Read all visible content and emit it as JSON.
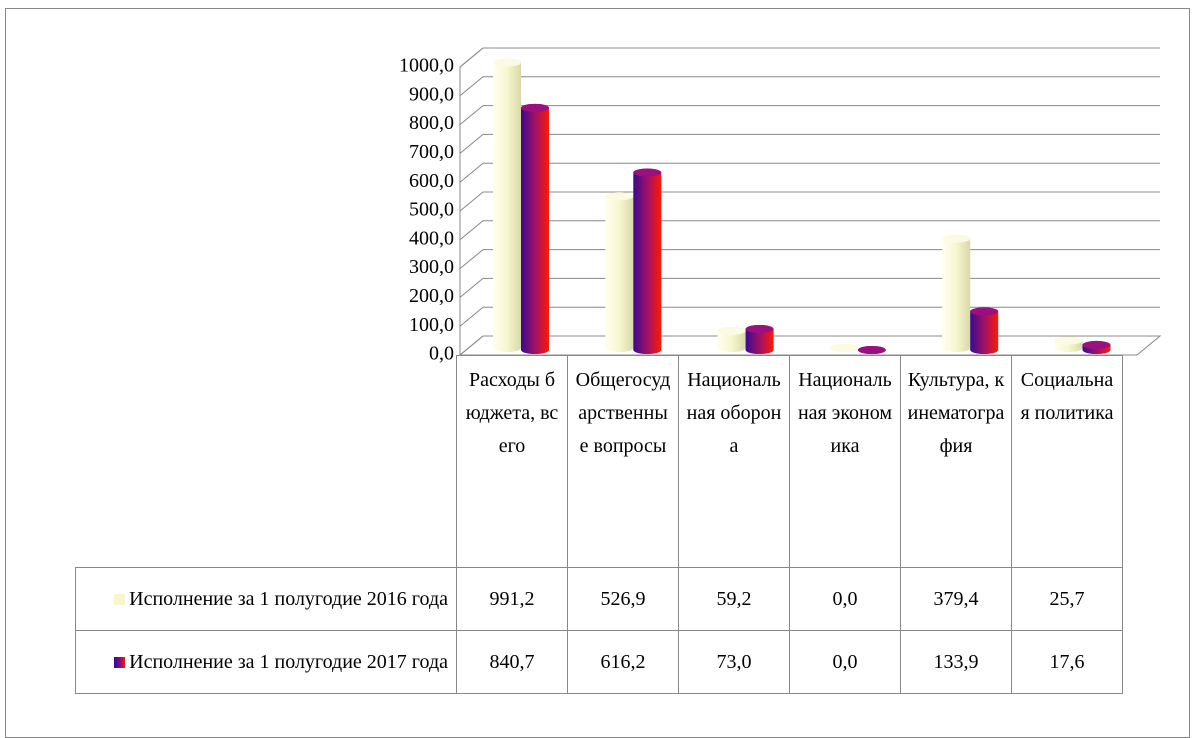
{
  "chart_data": {
    "type": "bar3d",
    "categories": [
      "Расходы бюджета, всего",
      "Общегосударственные вопросы",
      "Национальная оборона",
      "Национальная экономика",
      "Культура, кинематография",
      "Социальная политика"
    ],
    "series": [
      {
        "name": "Исполнение за 1 полугодие 2016 года",
        "color": "#f7f7cf",
        "values": [
          991.2,
          526.9,
          59.2,
          0.0,
          379.4,
          25.7
        ],
        "value_labels": [
          "991,2",
          "526,9",
          "59,2",
          "0,0",
          "379,4",
          "25,7"
        ]
      },
      {
        "name": "Исполнение за 1 полугодие 2017 года",
        "color": "#7a0a8c",
        "values": [
          840.7,
          616.2,
          73.0,
          0.0,
          133.9,
          17.6
        ],
        "value_labels": [
          "840,7",
          "616,2",
          "73,0",
          "0,0",
          "133,9",
          "17,6"
        ]
      }
    ],
    "ylim": [
      0,
      1000
    ],
    "yticks": [
      {
        "value": 0,
        "label": "0,0"
      },
      {
        "value": 100,
        "label": "100,0"
      },
      {
        "value": 200,
        "label": "200,0"
      },
      {
        "value": 300,
        "label": "300,0"
      },
      {
        "value": 400,
        "label": "400,0"
      },
      {
        "value": 500,
        "label": "500,0"
      },
      {
        "value": 600,
        "label": "600,0"
      },
      {
        "value": 700,
        "label": "700,0"
      },
      {
        "value": 800,
        "label": "800,0"
      },
      {
        "value": 900,
        "label": "900,0"
      },
      {
        "value": 1000,
        "label": "1000,0"
      }
    ],
    "grid": true,
    "data_table": true
  }
}
